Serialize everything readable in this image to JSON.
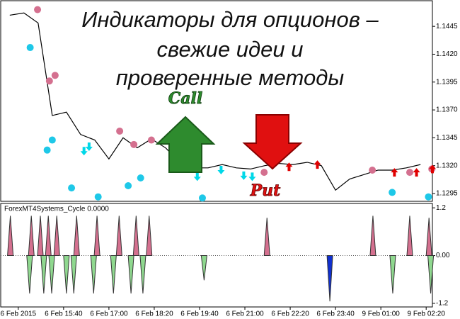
{
  "headline": [
    "Индикаторы для опционов –",
    "свежие идеи и",
    "проверенные методы"
  ],
  "call_label": "Call",
  "put_label": "Put",
  "chart_data": [
    {
      "type": "line",
      "x": [
        -15,
        10,
        35,
        60,
        85,
        110,
        135,
        160,
        185,
        210,
        235,
        260,
        285,
        310,
        335,
        360,
        385,
        410,
        435,
        460,
        485,
        510,
        535,
        560,
        585,
        610,
        635,
        660,
        685,
        710
      ],
      "values": [
        1.1455,
        1.1457,
        1.1448,
        1.1365,
        1.1368,
        1.1348,
        1.1343,
        1.1326,
        1.1345,
        1.1336,
        1.1344,
        1.1336,
        1.1323,
        1.1318,
        1.1318,
        1.1321,
        1.1318,
        1.1317,
        1.132,
        1.1322,
        1.1321,
        1.1323,
        1.132,
        1.1298,
        1.1308,
        1.1312,
        1.1316,
        1.1316,
        1.1318,
        1.1321
      ],
      "color": "#000000",
      "dots": [
        {
          "color": "#d4708f",
          "x": [
            34,
            55,
            65,
            179,
            204,
            235,
            434,
            625,
            691,
            730
          ],
          "values": [
            1.146,
            1.1396,
            1.1401,
            1.1351,
            1.1339,
            1.1343,
            1.1314,
            1.1316,
            1.1314,
            1.1317
          ]
        },
        {
          "color": "#1ec8e8",
          "x": [
            21,
            51,
            60,
            94,
            141,
            194,
            216,
            325,
            660,
            724
          ],
          "values": [
            1.1426,
            1.1334,
            1.1343,
            1.13,
            1.1292,
            1.1302,
            1.1309,
            1.1291,
            1.1296,
            1.1292
          ]
        }
      ],
      "up_arrows": {
        "color": "#00d8e8",
        "x": [
          116,
          125,
          316,
          358,
          398,
          413
        ],
        "values": [
          1.1333,
          1.1337,
          1.131,
          1.1316,
          1.1311,
          1.131
        ]
      },
      "down_arrows": {
        "color": "#e00000",
        "x": [
          478,
          528,
          664,
          703,
          731
        ],
        "values": [
          1.1319,
          1.1321,
          1.1314,
          1.1314,
          1.1317
        ]
      },
      "xlim": [
        -31,
        731
      ],
      "xticks": [
        {
          "value": 0,
          "label": "6 Feb 2015"
        },
        {
          "value": 80,
          "label": "6 Feb 15:40"
        },
        {
          "value": 160,
          "label": "6 Feb 17:00"
        },
        {
          "value": 240,
          "label": "6 Feb 18:20"
        },
        {
          "value": 320,
          "label": "6 Feb 19:40"
        },
        {
          "value": 400,
          "label": "6 Feb 21:00"
        },
        {
          "value": 480,
          "label": "6 Feb 22:20"
        },
        {
          "value": 560,
          "label": "6 Feb 23:40"
        },
        {
          "value": 640,
          "label": "9 Feb 01:00"
        },
        {
          "value": 720,
          "label": "9 Feb 02:20"
        }
      ],
      "ylim": [
        1.1288,
        1.1468
      ],
      "yticks": [
        1.1445,
        {
          "value": 1.142,
          "label": "1.1420"
        },
        1.1395,
        {
          "value": 1.137,
          "label": "1.1370"
        },
        1.1345,
        {
          "value": 1.132,
          "label": "1.1320"
        },
        1.1295
      ]
    },
    {
      "type": "bar",
      "title": "ForexMT4Systems_Cycle 0.0000",
      "x": [
        -14,
        23,
        39,
        53,
        68,
        103,
        139,
        178,
        208,
        231,
        439,
        626,
        691,
        725,
        20,
        45,
        59,
        85,
        98,
        133,
        168,
        199,
        220,
        328,
        550,
        661,
        728
      ],
      "values": [
        1.0,
        1.0,
        1.0,
        1.0,
        1.0,
        1.0,
        1.0,
        1.0,
        1.0,
        1.0,
        0.95,
        1.0,
        1.0,
        0.95,
        -0.95,
        -0.95,
        -0.95,
        -0.95,
        -0.95,
        -0.95,
        -0.95,
        -0.95,
        -0.95,
        -0.62,
        -1.15,
        -0.95,
        -0.95
      ],
      "colors": [
        "#d4708f",
        "#d4708f",
        "#d4708f",
        "#d4708f",
        "#d4708f",
        "#d4708f",
        "#d4708f",
        "#d4708f",
        "#d4708f",
        "#d4708f",
        "#d4708f",
        "#d4708f",
        "#d4708f",
        "#d4708f",
        "#8fd88f",
        "#8fd88f",
        "#8fd88f",
        "#8fd88f",
        "#8fd88f",
        "#8fd88f",
        "#8fd88f",
        "#8fd88f",
        "#8fd88f",
        "#8fd88f",
        "#1030d0",
        "#8fd88f",
        "#8fd88f"
      ],
      "xlim": [
        -31,
        731
      ],
      "ylim": [
        -1.29,
        1.31
      ],
      "yticks": [
        1.2,
        {
          "value": 0,
          "label": "0.00"
        },
        -1.2
      ]
    }
  ]
}
